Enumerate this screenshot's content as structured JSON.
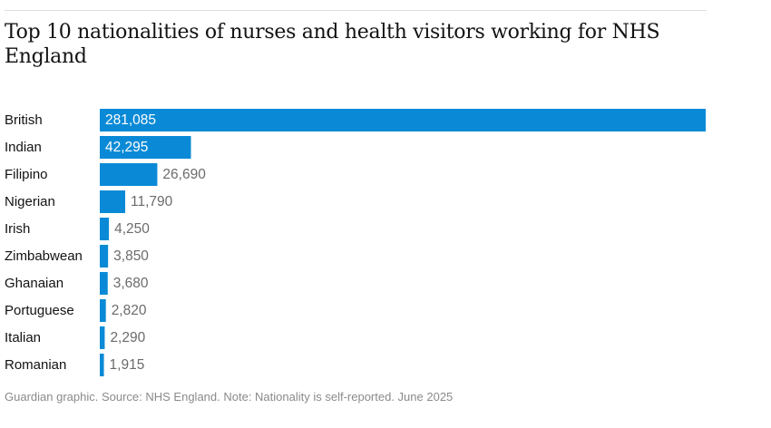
{
  "header": {
    "title": "Top 10 nationalities of nurses and health visitors working for NHS England"
  },
  "footer": {
    "source": "Guardian graphic. Source: NHS England. Note: Nationality is self-reported. June 2025"
  },
  "colors": {
    "bar": "#0a8ad6",
    "inside_label": "#ffffff",
    "outside_label": "#6b6b6b"
  },
  "chart_data": {
    "type": "bar",
    "orientation": "horizontal",
    "title": "Top 10 nationalities of nurses and health visitors working for NHS England",
    "categories": [
      "British",
      "Indian",
      "Filipino",
      "Nigerian",
      "Irish",
      "Zimbabwean",
      "Ghanaian",
      "Portuguese",
      "Italian",
      "Romanian"
    ],
    "values": [
      281085,
      42295,
      26690,
      11790,
      4250,
      3850,
      3680,
      2820,
      2290,
      1915
    ],
    "value_labels": [
      "281,085",
      "42,295",
      "26,690",
      "11,790",
      "4,250",
      "3,850",
      "3,680",
      "2,820",
      "2,290",
      "1,915"
    ],
    "xlim": [
      0,
      281085
    ],
    "grid": false,
    "legend": "none"
  }
}
